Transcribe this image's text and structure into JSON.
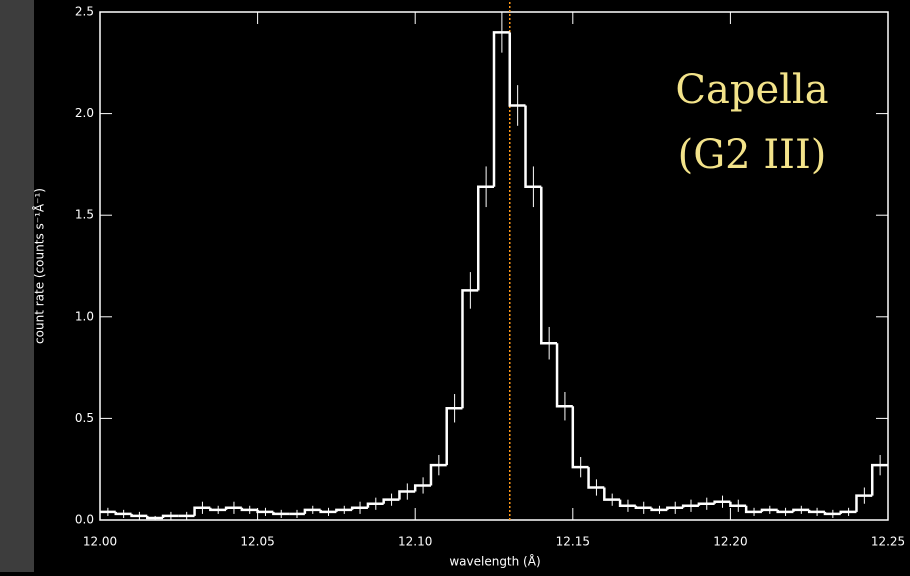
{
  "chart_data": {
    "type": "step-histogram",
    "xlabel": "wavelength (Å)",
    "ylabel": "count rate (counts s⁻¹Å⁻¹)",
    "annotation": [
      "Capella",
      "(G2 III)"
    ],
    "color": "#ffffff",
    "marker_line": {
      "x": 12.13,
      "color": "#ff9a1a"
    },
    "bins": [
      12.0,
      12.005,
      12.01,
      12.015,
      12.02,
      12.025,
      12.03,
      12.035,
      12.04,
      12.045,
      12.05,
      12.055,
      12.06,
      12.065,
      12.07,
      12.075,
      12.08,
      12.085,
      12.09,
      12.095,
      12.1,
      12.105,
      12.11,
      12.115,
      12.12,
      12.125,
      12.13,
      12.135,
      12.14,
      12.145,
      12.15,
      12.155,
      12.16,
      12.165,
      12.17,
      12.175,
      12.18,
      12.185,
      12.19,
      12.195,
      12.2,
      12.205,
      12.21,
      12.215,
      12.22,
      12.225,
      12.23,
      12.235,
      12.24,
      12.245,
      12.25
    ],
    "values": [
      0.04,
      0.03,
      0.02,
      0.01,
      0.02,
      0.02,
      0.06,
      0.05,
      0.06,
      0.05,
      0.04,
      0.03,
      0.03,
      0.05,
      0.04,
      0.05,
      0.06,
      0.08,
      0.1,
      0.14,
      0.17,
      0.27,
      0.55,
      1.13,
      1.64,
      2.4,
      2.04,
      1.64,
      0.87,
      0.56,
      0.26,
      0.16,
      0.1,
      0.07,
      0.06,
      0.05,
      0.06,
      0.07,
      0.08,
      0.09,
      0.07,
      0.04,
      0.05,
      0.04,
      0.05,
      0.04,
      0.03,
      0.04,
      0.12,
      0.27
    ],
    "errors": [
      0.02,
      0.02,
      0.02,
      0.01,
      0.02,
      0.02,
      0.03,
      0.02,
      0.03,
      0.02,
      0.02,
      0.02,
      0.02,
      0.02,
      0.02,
      0.02,
      0.03,
      0.03,
      0.03,
      0.04,
      0.04,
      0.05,
      0.07,
      0.09,
      0.1,
      0.1,
      0.1,
      0.1,
      0.08,
      0.07,
      0.05,
      0.04,
      0.03,
      0.03,
      0.03,
      0.02,
      0.03,
      0.03,
      0.03,
      0.03,
      0.03,
      0.02,
      0.02,
      0.02,
      0.02,
      0.02,
      0.02,
      0.02,
      0.04,
      0.05
    ],
    "xlim": [
      12.0,
      12.25
    ],
    "ylim": [
      0,
      2.5
    ],
    "xticks": [
      {
        "value": 12.0,
        "label": "12.00"
      },
      12.05,
      {
        "value": 12.1,
        "label": "12.10"
      },
      12.15,
      {
        "value": 12.2,
        "label": "12.20"
      },
      12.25
    ],
    "yticks": [
      {
        "value": 0,
        "label": "0.0"
      },
      0.5,
      {
        "value": 1,
        "label": "1.0"
      },
      1.5,
      {
        "value": 2,
        "label": "2.0"
      },
      2.5
    ]
  }
}
